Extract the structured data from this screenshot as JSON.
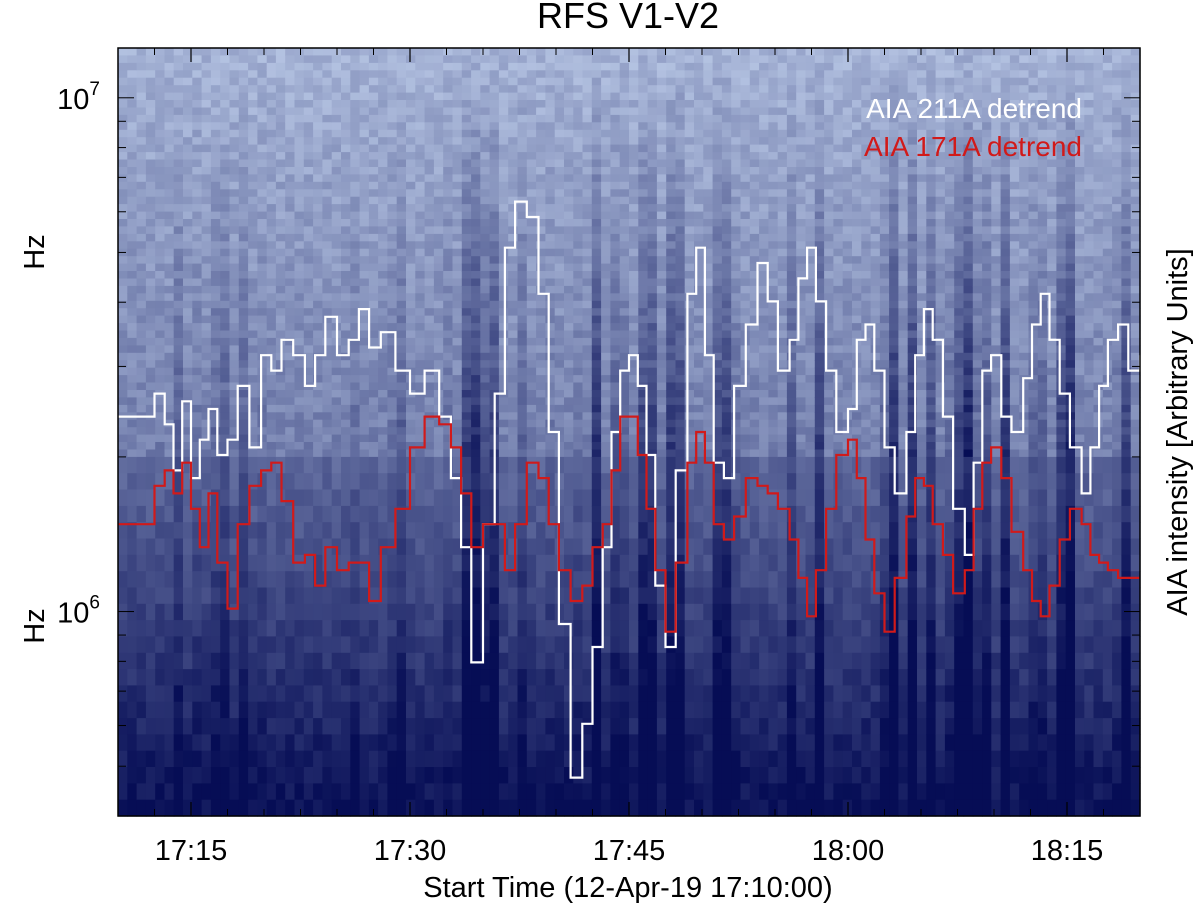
{
  "chart_data": {
    "type": "line",
    "background": "spectrogram",
    "title": "RFS V1-V2",
    "xlabel": "Start Time (12-Apr-19 17:10:00)",
    "ylabel_upper": "Hz",
    "ylabel_lower": "Hz",
    "y2label": "AIA intensity [Arbitrary Units]",
    "y_scale": "log",
    "ylim": [
      400000,
      12500000
    ],
    "xlim_minutes": [
      0,
      70
    ],
    "x_ticks": [
      {
        "label": "17:15",
        "minutes": 5
      },
      {
        "label": "17:30",
        "minutes": 20
      },
      {
        "label": "17:45",
        "minutes": 35
      },
      {
        "label": "18:00",
        "minutes": 50
      },
      {
        "label": "18:15",
        "minutes": 65
      }
    ],
    "y_ticks": [
      {
        "base": "10",
        "exp": "6",
        "value": 1000000
      },
      {
        "base": "10",
        "exp": "7",
        "value": 10000000
      }
    ],
    "legend_position": "top-right",
    "colors": {
      "aia211": "#ffffff",
      "aia171": "#d11a1a",
      "spectrogram_low": "#060d55",
      "spectrogram_high": "#d2e2fa"
    },
    "series": [
      {
        "key": "aia211",
        "name": "AIA 211A detrend",
        "color": "#ffffff",
        "y_range": [
          0,
          1
        ],
        "x": [
          0,
          1.8,
          2.5,
          3.2,
          3.8,
          4.4,
          5.0,
          5.6,
          6.2,
          6.8,
          7.5,
          8.2,
          9.0,
          9.8,
          10.5,
          11.2,
          12.0,
          12.8,
          13.5,
          14.2,
          15.0,
          15.8,
          16.5,
          17.2,
          18.0,
          19.0,
          20.0,
          21.0,
          22.0,
          22.8,
          23.5,
          24.2,
          25.0,
          25.8,
          26.5,
          27.2,
          28.0,
          28.8,
          29.5,
          30.2,
          31.0,
          31.8,
          32.5,
          33.2,
          33.8,
          34.4,
          35.0,
          35.6,
          36.2,
          36.8,
          37.5,
          38.2,
          39.0,
          39.6,
          40.2,
          40.8,
          41.5,
          42.2,
          43.0,
          43.8,
          44.5,
          45.2,
          46.0,
          46.6,
          47.2,
          47.8,
          48.5,
          49.2,
          50.0,
          50.6,
          51.2,
          51.8,
          52.5,
          53.2,
          54.0,
          54.6,
          55.2,
          55.8,
          56.5,
          57.2,
          58.0,
          58.6,
          59.2,
          59.8,
          60.5,
          61.2,
          62.0,
          62.6,
          63.2,
          63.8,
          64.5,
          65.2,
          66.0,
          66.6,
          67.2,
          67.8,
          68.5,
          69.2,
          70.0
        ],
        "y": [
          0.52,
          0.52,
          0.55,
          0.51,
          0.45,
          0.54,
          0.44,
          0.49,
          0.53,
          0.47,
          0.49,
          0.56,
          0.48,
          0.6,
          0.58,
          0.62,
          0.6,
          0.56,
          0.6,
          0.65,
          0.6,
          0.62,
          0.66,
          0.61,
          0.63,
          0.58,
          0.55,
          0.58,
          0.52,
          0.44,
          0.35,
          0.2,
          0.38,
          0.55,
          0.74,
          0.8,
          0.78,
          0.68,
          0.5,
          0.25,
          0.05,
          0.12,
          0.22,
          0.35,
          0.5,
          0.58,
          0.6,
          0.56,
          0.47,
          0.3,
          0.22,
          0.45,
          0.68,
          0.74,
          0.6,
          0.46,
          0.44,
          0.56,
          0.64,
          0.72,
          0.67,
          0.58,
          0.62,
          0.7,
          0.74,
          0.67,
          0.58,
          0.5,
          0.53,
          0.62,
          0.64,
          0.58,
          0.48,
          0.42,
          0.5,
          0.6,
          0.66,
          0.62,
          0.52,
          0.4,
          0.34,
          0.46,
          0.58,
          0.6,
          0.52,
          0.5,
          0.57,
          0.64,
          0.68,
          0.62,
          0.55,
          0.48,
          0.42,
          0.48,
          0.56,
          0.62,
          0.64,
          0.58,
          0.6
        ]
      },
      {
        "key": "aia171",
        "name": "AIA 171A detrend",
        "color": "#d11a1a",
        "y_range": [
          0,
          1
        ],
        "x": [
          0,
          1.8,
          2.5,
          3.2,
          3.8,
          4.4,
          5.0,
          5.6,
          6.2,
          6.8,
          7.5,
          8.2,
          9.0,
          9.8,
          10.5,
          11.2,
          12.0,
          12.8,
          13.5,
          14.2,
          15.0,
          15.8,
          16.5,
          17.2,
          18.0,
          19.0,
          20.0,
          21.0,
          22.0,
          22.8,
          23.5,
          24.2,
          25.0,
          25.8,
          26.5,
          27.2,
          28.0,
          28.8,
          29.5,
          30.2,
          31.0,
          31.8,
          32.5,
          33.2,
          33.8,
          34.4,
          35.0,
          35.6,
          36.2,
          36.8,
          37.5,
          38.2,
          39.0,
          39.6,
          40.2,
          40.8,
          41.5,
          42.2,
          43.0,
          43.8,
          44.5,
          45.2,
          46.0,
          46.6,
          47.2,
          47.8,
          48.5,
          49.2,
          50.0,
          50.6,
          51.2,
          51.8,
          52.5,
          53.2,
          54.0,
          54.6,
          55.2,
          55.8,
          56.5,
          57.2,
          58.0,
          58.6,
          59.2,
          59.8,
          60.5,
          61.2,
          62.0,
          62.6,
          63.2,
          63.8,
          64.5,
          65.2,
          66.0,
          66.6,
          67.2,
          67.8,
          68.5,
          69.2,
          70.0
        ],
        "y": [
          0.38,
          0.38,
          0.43,
          0.45,
          0.42,
          0.46,
          0.4,
          0.35,
          0.42,
          0.33,
          0.27,
          0.38,
          0.43,
          0.45,
          0.46,
          0.41,
          0.33,
          0.34,
          0.3,
          0.35,
          0.32,
          0.33,
          0.33,
          0.28,
          0.35,
          0.4,
          0.48,
          0.52,
          0.51,
          0.48,
          0.42,
          0.35,
          0.38,
          0.38,
          0.32,
          0.38,
          0.46,
          0.44,
          0.38,
          0.32,
          0.28,
          0.3,
          0.35,
          0.38,
          0.45,
          0.52,
          0.52,
          0.47,
          0.4,
          0.32,
          0.24,
          0.33,
          0.46,
          0.5,
          0.46,
          0.38,
          0.36,
          0.39,
          0.44,
          0.43,
          0.42,
          0.4,
          0.36,
          0.31,
          0.26,
          0.32,
          0.4,
          0.47,
          0.49,
          0.44,
          0.36,
          0.29,
          0.24,
          0.31,
          0.39,
          0.44,
          0.43,
          0.38,
          0.34,
          0.29,
          0.32,
          0.4,
          0.46,
          0.48,
          0.44,
          0.37,
          0.32,
          0.28,
          0.26,
          0.3,
          0.36,
          0.4,
          0.38,
          0.34,
          0.33,
          0.32,
          0.31,
          0.31,
          0.31
        ]
      }
    ]
  }
}
